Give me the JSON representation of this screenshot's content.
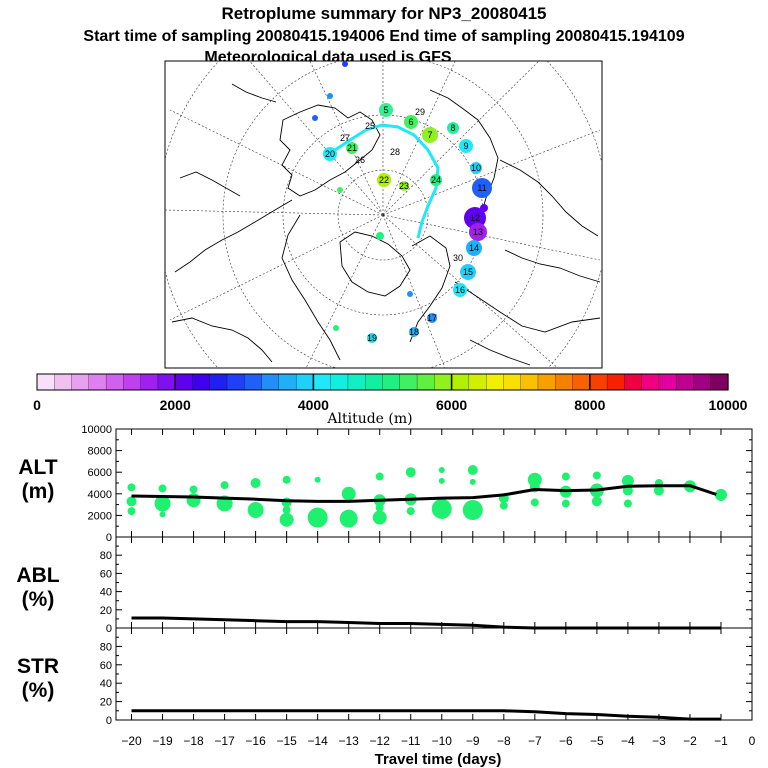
{
  "header": {
    "title": "Retroplume summary for NP3_20080415",
    "sampling": "Start time of sampling 20080415.194006     End time of sampling 20080415.194109",
    "met": "Meteorological data used is GFS"
  },
  "colorbar": {
    "title": "Altitude (m)",
    "ticks": [
      "0",
      "2000",
      "4000",
      "6000",
      "8000",
      "10000"
    ],
    "colors": [
      "#f8e0f8",
      "#f0c0f0",
      "#e8a0f0",
      "#e080f0",
      "#d060f0",
      "#c040f0",
      "#a020f0",
      "#8010f0",
      "#6000f0",
      "#4000f0",
      "#2020f0",
      "#2040f8",
      "#2060f8",
      "#2090f8",
      "#20b0f8",
      "#20d0f8",
      "#20e8f8",
      "#10f0e0",
      "#10f0c0",
      "#10f0a0",
      "#20f080",
      "#40f060",
      "#60f040",
      "#90f020",
      "#b0f000",
      "#d0f000",
      "#f0f000",
      "#f8e000",
      "#f8c000",
      "#f8a000",
      "#f88000",
      "#f86000",
      "#f84000",
      "#f82000",
      "#f00040",
      "#f00080",
      "#e000a0",
      "#c00090",
      "#a00080",
      "#800060"
    ]
  },
  "map": {
    "trajectory_labels": [
      "5",
      "6",
      "7",
      "8",
      "9",
      "10",
      "11",
      "12",
      "13",
      "14",
      "15",
      "16",
      "17",
      "18",
      "19",
      "20",
      "21",
      "22",
      "23",
      "24",
      "25",
      "26",
      "27",
      "28",
      "29",
      "30"
    ]
  },
  "chart_data": [
    {
      "type": "line",
      "panel": "ALT",
      "ylabel_line1": "ALT",
      "ylabel_line2": "(m)",
      "ylim": [
        0,
        10000
      ],
      "yticks": [
        "0",
        "2000",
        "4000",
        "6000",
        "8000",
        "10000"
      ],
      "x": [
        -20,
        -19,
        -18,
        -17,
        -16,
        -15,
        -14,
        -13,
        -12,
        -11,
        -10,
        -9,
        -8,
        -7,
        -6,
        -5,
        -4,
        -3,
        -2,
        -1
      ],
      "series": [
        {
          "name": "mean altitude",
          "values": [
            3800,
            3750,
            3700,
            3600,
            3500,
            3350,
            3300,
            3300,
            3400,
            3500,
            3600,
            3650,
            3900,
            4400,
            4300,
            4350,
            4700,
            4750,
            4750,
            3800
          ]
        }
      ],
      "scatter": [
        [
          -20,
          4600,
          4
        ],
        [
          -20,
          3300,
          5
        ],
        [
          -20,
          2400,
          4
        ],
        [
          -19,
          4500,
          4
        ],
        [
          -19,
          3100,
          8
        ],
        [
          -19,
          2100,
          3
        ],
        [
          -18,
          4400,
          4
        ],
        [
          -18,
          3400,
          7
        ],
        [
          -17,
          4800,
          4
        ],
        [
          -17,
          3100,
          8
        ],
        [
          -16,
          5000,
          5
        ],
        [
          -16,
          2500,
          8
        ],
        [
          -15,
          5300,
          4
        ],
        [
          -15,
          3200,
          5
        ],
        [
          -15,
          2500,
          4
        ],
        [
          -15,
          1600,
          7
        ],
        [
          -14,
          5300,
          3
        ],
        [
          -14,
          1800,
          10
        ],
        [
          -13,
          4000,
          7
        ],
        [
          -13,
          1700,
          9
        ],
        [
          -12,
          5600,
          4
        ],
        [
          -12,
          3400,
          6
        ],
        [
          -12,
          2700,
          4
        ],
        [
          -12,
          1800,
          7
        ],
        [
          -11,
          6000,
          5
        ],
        [
          -11,
          3500,
          6
        ],
        [
          -11,
          2400,
          4
        ],
        [
          -10,
          6200,
          3
        ],
        [
          -10,
          5200,
          3
        ],
        [
          -10,
          2600,
          10
        ],
        [
          -9,
          6200,
          5
        ],
        [
          -9,
          5100,
          3
        ],
        [
          -9,
          2500,
          10
        ],
        [
          -8,
          3600,
          5
        ],
        [
          -8,
          2900,
          4
        ],
        [
          -7,
          5300,
          7
        ],
        [
          -7,
          4600,
          5
        ],
        [
          -7,
          3200,
          4
        ],
        [
          -6,
          5600,
          4
        ],
        [
          -6,
          4200,
          6
        ],
        [
          -6,
          3100,
          4
        ],
        [
          -5,
          5700,
          4
        ],
        [
          -5,
          4300,
          7
        ],
        [
          -5,
          3300,
          5
        ],
        [
          -4,
          5200,
          6
        ],
        [
          -4,
          4300,
          5
        ],
        [
          -4,
          3100,
          4
        ],
        [
          -3,
          5000,
          4
        ],
        [
          -3,
          4300,
          5
        ],
        [
          -2,
          4700,
          6
        ],
        [
          -2,
          4500,
          4
        ],
        [
          -1,
          3900,
          6
        ]
      ],
      "scatter_color": "#20f070"
    },
    {
      "type": "line",
      "panel": "ABL",
      "ylabel_line1": "ABL",
      "ylabel_line2": "(%)",
      "ylim": [
        0,
        100
      ],
      "yticks": [
        "0",
        "20",
        "40",
        "60",
        "80"
      ],
      "x": [
        -20,
        -19,
        -18,
        -17,
        -16,
        -15,
        -14,
        -13,
        -12,
        -11,
        -10,
        -9,
        -8,
        -7,
        -6,
        -5,
        -4,
        -3,
        -2,
        -1
      ],
      "series": [
        {
          "name": "ABL fraction",
          "values": [
            11,
            11,
            10,
            9,
            8,
            7,
            7,
            6,
            5,
            5,
            4,
            3,
            1,
            0,
            0,
            0,
            0,
            0,
            0,
            0
          ]
        }
      ]
    },
    {
      "type": "line",
      "panel": "STR",
      "ylabel_line1": "STR",
      "ylabel_line2": "(%)",
      "ylim": [
        0,
        100
      ],
      "yticks": [
        "0",
        "20",
        "40",
        "60",
        "80"
      ],
      "x": [
        -20,
        -19,
        -18,
        -17,
        -16,
        -15,
        -14,
        -13,
        -12,
        -11,
        -10,
        -9,
        -8,
        -7,
        -6,
        -5,
        -4,
        -3,
        -2,
        -1
      ],
      "series": [
        {
          "name": "STR fraction",
          "values": [
            10,
            10,
            10,
            10,
            10,
            10,
            10,
            10,
            10,
            10,
            10,
            10,
            10,
            9,
            7,
            6,
            4,
            3,
            1,
            1
          ]
        }
      ]
    }
  ],
  "xaxis": {
    "label": "Travel time (days)",
    "ticks": [
      "−20",
      "−19",
      "−18",
      "−17",
      "−16",
      "−15",
      "−14",
      "−13",
      "−12",
      "−11",
      "−10",
      "−9",
      "−8",
      "−7",
      "−6",
      "−5",
      "−4",
      "−3",
      "−2",
      "−1",
      "0"
    ]
  }
}
